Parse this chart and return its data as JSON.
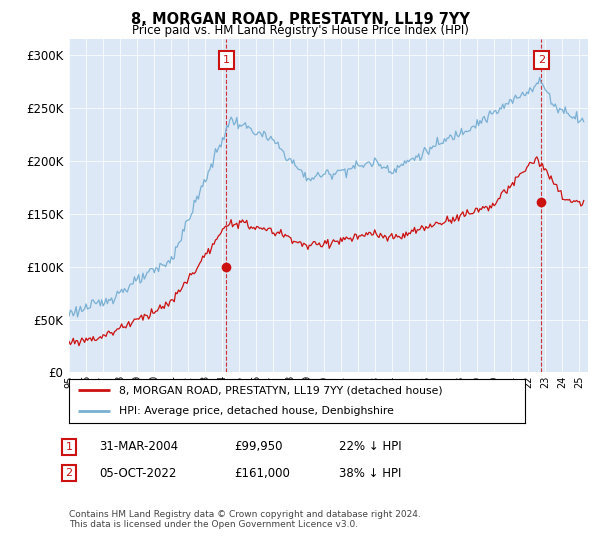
{
  "title": "8, MORGAN ROAD, PRESTATYN, LL19 7YY",
  "subtitle": "Price paid vs. HM Land Registry's House Price Index (HPI)",
  "ylabel_ticks": [
    "£0",
    "£50K",
    "£100K",
    "£150K",
    "£200K",
    "£250K",
    "£300K"
  ],
  "ytick_values": [
    0,
    50000,
    100000,
    150000,
    200000,
    250000,
    300000
  ],
  "ylim": [
    0,
    315000
  ],
  "xlim_start": 1995.0,
  "xlim_end": 2025.5,
  "hpi_color": "#7ab0d4",
  "price_color": "#cc1111",
  "marker1_x": 2004.25,
  "marker2_x": 2022.75,
  "marker1_price_y": 99950,
  "marker2_price_y": 161000,
  "legend_line1": "8, MORGAN ROAD, PRESTATYN, LL19 7YY (detached house)",
  "legend_line2": "HPI: Average price, detached house, Denbighshire",
  "marker1_date": "31-MAR-2004",
  "marker1_price": "£99,950",
  "marker1_hpi": "22% ↓ HPI",
  "marker2_date": "05-OCT-2022",
  "marker2_price": "£161,000",
  "marker2_hpi": "38% ↓ HPI",
  "footnote": "Contains HM Land Registry data © Crown copyright and database right 2024.\nThis data is licensed under the Open Government Licence v3.0.",
  "plot_bg_color": "#dce8f5",
  "fig_bg_color": "#ffffff"
}
